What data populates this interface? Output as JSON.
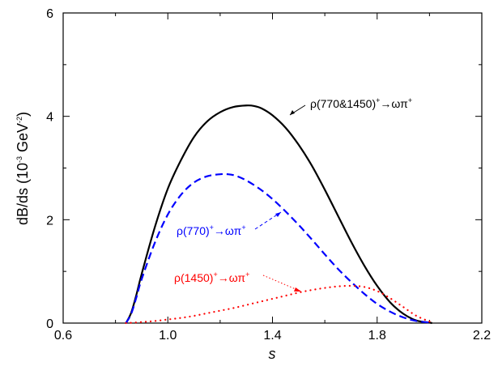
{
  "chart_data": {
    "type": "line",
    "title": "",
    "xlabel": "s",
    "ylabel_parts": {
      "main": "dB/ds (10",
      "exp": "-3",
      "mid": " GeV",
      "exp2": "-2",
      "end": ")"
    },
    "xlim": [
      0.6,
      2.2
    ],
    "ylim": [
      0,
      6
    ],
    "xticks": [
      "0.6",
      "1.0",
      "1.4",
      "1.8",
      "2.2"
    ],
    "yticks": [
      "0",
      "2",
      "4",
      "6"
    ],
    "grid": false,
    "legend": "none",
    "series": [
      {
        "label_parts": {
          "pre": "ρ(770&1450)",
          "sup1": "+",
          "mid": "→ωπ",
          "sup2": "+"
        },
        "color": "#000000",
        "style": "solid",
        "x": [
          0.84,
          0.86,
          0.88,
          0.9,
          0.95,
          1.0,
          1.05,
          1.1,
          1.15,
          1.2,
          1.25,
          1.3,
          1.33,
          1.36,
          1.4,
          1.45,
          1.5,
          1.55,
          1.6,
          1.65,
          1.7,
          1.75,
          1.8,
          1.85,
          1.9,
          1.95,
          2.0,
          2.01
        ],
        "y": [
          0,
          0.2,
          0.55,
          0.95,
          1.85,
          2.6,
          3.15,
          3.6,
          3.9,
          4.08,
          4.18,
          4.21,
          4.2,
          4.15,
          4.02,
          3.78,
          3.45,
          3.05,
          2.58,
          2.08,
          1.58,
          1.12,
          0.72,
          0.4,
          0.18,
          0.05,
          0.01,
          0
        ]
      },
      {
        "label_parts": {
          "pre": "ρ(770)",
          "sup1": "+",
          "mid": "→ωπ",
          "sup2": "+"
        },
        "color": "#0000ff",
        "style": "dashed",
        "x": [
          0.84,
          0.86,
          0.88,
          0.9,
          0.95,
          1.0,
          1.05,
          1.1,
          1.15,
          1.2,
          1.23,
          1.26,
          1.3,
          1.35,
          1.4,
          1.45,
          1.5,
          1.55,
          1.6,
          1.65,
          1.7,
          1.75,
          1.8,
          1.85,
          1.9,
          1.95,
          2.0,
          2.01
        ],
        "y": [
          0,
          0.18,
          0.5,
          0.85,
          1.55,
          2.1,
          2.48,
          2.72,
          2.84,
          2.88,
          2.88,
          2.85,
          2.76,
          2.6,
          2.4,
          2.16,
          1.9,
          1.62,
          1.33,
          1.05,
          0.8,
          0.57,
          0.37,
          0.22,
          0.11,
          0.04,
          0.01,
          0
        ]
      },
      {
        "label_parts": {
          "pre": "ρ(1450)",
          "sup1": "+",
          "mid": "→ωπ",
          "sup2": "+"
        },
        "color": "#ff0000",
        "style": "dotted",
        "x": [
          0.84,
          0.9,
          0.95,
          1.0,
          1.05,
          1.1,
          1.15,
          1.2,
          1.25,
          1.3,
          1.35,
          1.4,
          1.45,
          1.5,
          1.55,
          1.6,
          1.65,
          1.7,
          1.75,
          1.8,
          1.85,
          1.9,
          1.95,
          2.0,
          2.01
        ],
        "y": [
          0,
          0.02,
          0.04,
          0.07,
          0.1,
          0.14,
          0.19,
          0.24,
          0.29,
          0.35,
          0.41,
          0.47,
          0.53,
          0.59,
          0.64,
          0.68,
          0.71,
          0.72,
          0.7,
          0.62,
          0.48,
          0.31,
          0.14,
          0.03,
          0
        ]
      }
    ]
  }
}
